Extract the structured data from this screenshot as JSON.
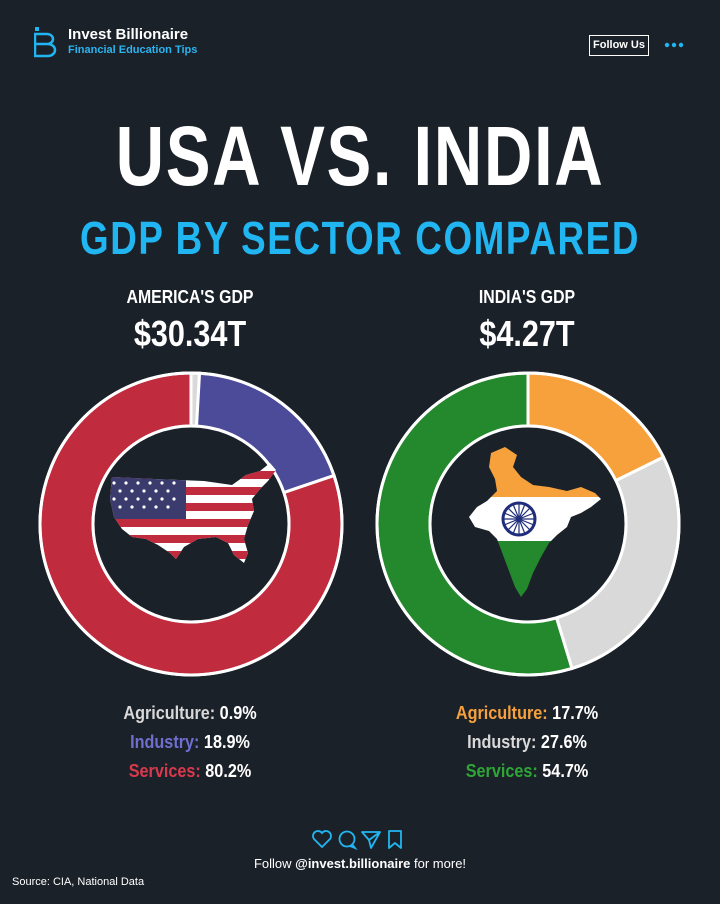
{
  "header": {
    "brand_name": "Invest Billionaire",
    "brand_tagline": "Financial Education Tips",
    "follow_button": "Follow Us",
    "more_icon": "more-dots-icon"
  },
  "title": "USA VS. INDIA",
  "subtitle": "GDP BY SECTOR COMPARED",
  "colors": {
    "background": "#1b2129",
    "accent": "#21b6f2",
    "usa_agriculture": "#d9d9d9",
    "usa_industry": "#4b4b9a",
    "usa_services": "#c02b3e",
    "india_agriculture": "#f7a13c",
    "india_industry": "#d9d9d9",
    "india_services": "#24892c"
  },
  "usa": {
    "gdp_label": "AMERICA'S GDP",
    "gdp_value": "$30.34T",
    "center_icon": "usa-flag-map-icon"
  },
  "india": {
    "gdp_label": "INDIA'S GDP",
    "gdp_value": "$4.27T",
    "center_icon": "india-flag-map-icon"
  },
  "chart_data": [
    {
      "type": "pie",
      "title": "AMERICA'S GDP",
      "categories": [
        "Agriculture",
        "Industry",
        "Services"
      ],
      "values": [
        0.9,
        18.9,
        80.2
      ],
      "value_labels": [
        "0.9%",
        "18.9%",
        "80.2%"
      ],
      "colors": [
        "#d9d9d9",
        "#4b4b9a",
        "#c02b3e"
      ],
      "donut": true,
      "legend_placement": "bottom"
    },
    {
      "type": "pie",
      "title": "INDIA'S GDP",
      "categories": [
        "Agriculture",
        "Industry",
        "Services"
      ],
      "values": [
        17.7,
        27.6,
        54.7
      ],
      "value_labels": [
        "17.7%",
        "27.6%",
        "54.7%"
      ],
      "colors": [
        "#f7a13c",
        "#d9d9d9",
        "#24892c"
      ],
      "donut": true,
      "legend_placement": "bottom"
    }
  ],
  "footer": {
    "social_icons": [
      "heart-icon",
      "comment-icon",
      "share-icon",
      "bookmark-icon"
    ],
    "follow_prefix": "Follow ",
    "handle": "@invest.billionaire",
    "follow_suffix": " for more!",
    "source": "Source: CIA, National Data"
  }
}
